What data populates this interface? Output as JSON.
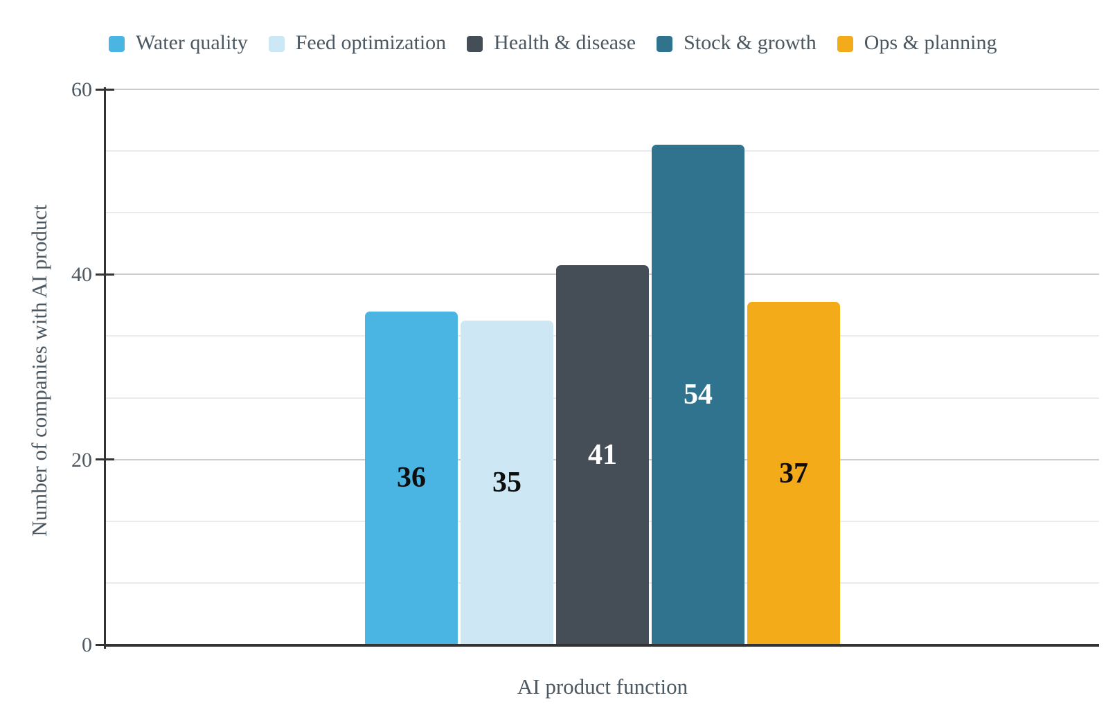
{
  "chart_data": {
    "type": "bar",
    "title": "",
    "xlabel": "AI product function",
    "ylabel": "Number of companies with AI product",
    "ylim": [
      0,
      60
    ],
    "yticks": [
      0,
      20,
      40,
      60
    ],
    "ytick_labels": [
      "0",
      "20",
      "40",
      "60"
    ],
    "grid": "horizontal; major lines at ticks, 2 minor lines between each pair of ticks",
    "legend_position": "top-left",
    "series": [
      {
        "name": "Water quality",
        "value": 36,
        "color": "#4AB5E3",
        "label_color": "#0E0E0E"
      },
      {
        "name": "Feed optimization",
        "value": 35,
        "color": "#CDE7F4",
        "label_color": "#0E0E0E"
      },
      {
        "name": "Health & disease",
        "value": 41,
        "color": "#454D57",
        "label_color": "#FFFFFF"
      },
      {
        "name": "Stock & growth",
        "value": 54,
        "color": "#30738F",
        "label_color": "#FFFFFF"
      },
      {
        "name": "Ops & planning",
        "value": 37,
        "color": "#F4AB19",
        "label_color": "#0E0E0E"
      }
    ]
  },
  "colors": {
    "background": "#FFFFFF",
    "axis_text": "#4B5761",
    "axis_line": "#333333",
    "gridline_major": "#CCCCCC",
    "gridline_minor": "#EBEBEB"
  }
}
